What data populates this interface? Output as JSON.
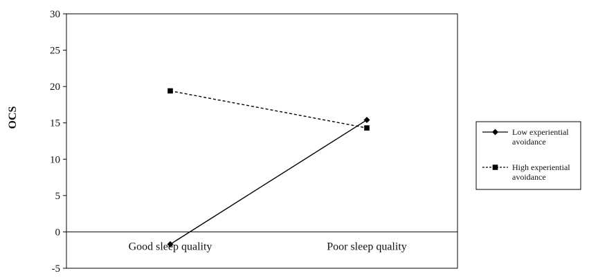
{
  "chart_data": {
    "type": "line",
    "title": "",
    "xlabel": "",
    "ylabel": "OCS",
    "categories": [
      "Good sleep quality",
      "Poor sleep quality"
    ],
    "ylim": [
      -5,
      30
    ],
    "yticks": [
      "30",
      "25",
      "20",
      "15",
      "10",
      "5",
      "0",
      "-5"
    ],
    "ytick_values": [
      30,
      25,
      20,
      15,
      10,
      5,
      0,
      -5
    ],
    "grid": false,
    "legend_position": "right",
    "series": [
      {
        "name": "Low experiential avoidance",
        "legend_lines": [
          "Low experiential",
          "avoidance"
        ],
        "values": [
          -1.7,
          15.4
        ],
        "line_style": "solid",
        "marker": "diamond",
        "color": "#000000"
      },
      {
        "name": "High experiential avoidance",
        "legend_lines": [
          "High experiential",
          "avoidance"
        ],
        "values": [
          19.4,
          14.3
        ],
        "line_style": "dashed",
        "marker": "square",
        "color": "#000000"
      }
    ]
  }
}
